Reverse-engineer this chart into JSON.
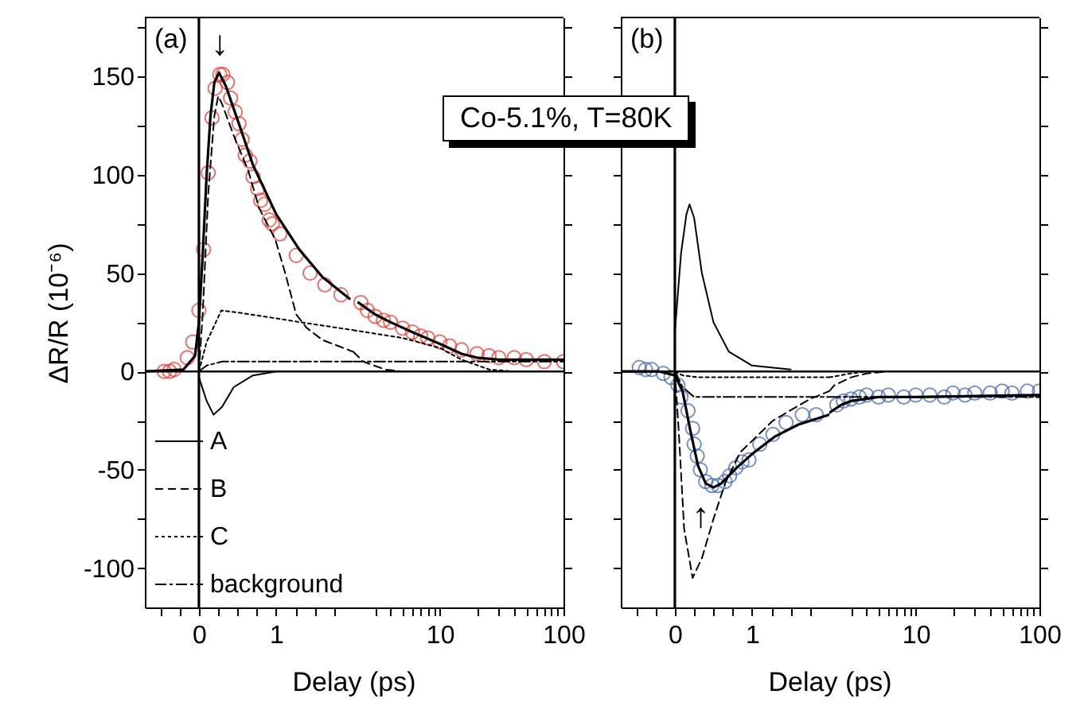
{
  "chart_data": [
    {
      "type": "line",
      "title": "(a)",
      "xlabel": "Delay (ps)",
      "ylabel": "ΔR/R (10⁻⁶)",
      "xlim": [
        -0.7,
        2
      ],
      "ylim": [
        -120,
        180
      ],
      "xticks": [
        {
          "value": -0.5,
          "label": null
        },
        {
          "value": -0.25,
          "label": null
        },
        0,
        {
          "value": 0.25,
          "label": null
        },
        {
          "value": 0.5,
          "label": null
        },
        {
          "value": 0.75,
          "label": null
        },
        1,
        {
          "value": 1.25,
          "label": null
        },
        {
          "value": 1.5,
          "label": null
        },
        {
          "value": 1.75,
          "label": null
        }
      ],
      "yticks": [
        -100,
        {
          "value": -75,
          "label": null
        },
        -50,
        {
          "value": -25,
          "label": null
        },
        0,
        {
          "value": 25,
          "label": null
        },
        50,
        {
          "value": 75,
          "label": null
        },
        100,
        {
          "value": 125,
          "label": null
        },
        150,
        {
          "value": 175,
          "label": null
        }
      ],
      "series": [
        {
          "type": "scatter",
          "marker": "circle",
          "color": "#e8342a",
          "x": [
            -0.45,
            -0.38,
            -0.32,
            -0.15,
            -0.08,
            0,
            0.06,
            0.12,
            0.17,
            0.21,
            0.27,
            0.31,
            0.37,
            0.41,
            0.47,
            0.52,
            0.56,
            0.6,
            0.66,
            0.7,
            0.76,
            0.8,
            0.85,
            0.91,
            0.95,
            1.05,
            1.26,
            1.44,
            1.63,
            1.84
          ],
          "values": [
            0,
            0,
            1,
            7,
            15,
            31,
            62,
            101,
            129,
            144,
            151,
            151,
            147,
            139,
            132,
            126,
            118,
            110,
            107,
            99,
            93,
            87,
            85,
            77,
            75,
            70,
            59,
            50,
            44,
            39
          ]
        },
        {
          "type": "line",
          "color": "#000000",
          "x": [
            -0.7,
            -0.2,
            -0.05,
            0,
            0.05,
            0.1,
            0.15,
            0.2,
            0.26,
            0.35,
            0.5,
            0.7,
            1,
            1.3,
            1.6,
            1.95
          ],
          "values": [
            0,
            1,
            8,
            25,
            60,
            100,
            130,
            147,
            152,
            145,
            128,
            105,
            80,
            62,
            48,
            37
          ]
        },
        {
          "type": "line",
          "name": "A",
          "line_style": "solid",
          "color": "#000000",
          "x": [
            0,
            0.1,
            0.19,
            0.3,
            0.45,
            0.7,
            1
          ],
          "values": [
            -3,
            -15,
            -22,
            -18,
            -8,
            -2,
            0
          ]
        },
        {
          "type": "line",
          "name": "B",
          "line_style": "dashed",
          "color": "#000000",
          "x": [
            0,
            0.05,
            0.12,
            0.2,
            0.25,
            0.3,
            0.45,
            0.64,
            0.78,
            0.99,
            1.11,
            1.26,
            1.4,
            1.6,
            1.8,
            2
          ],
          "values": [
            0,
            30,
            90,
            130,
            140,
            136,
            120,
            102,
            83,
            67,
            51,
            29,
            22,
            16,
            13,
            10
          ]
        },
        {
          "type": "line",
          "name": "C",
          "line_style": "dotted",
          "color": "#000000",
          "x": [
            0,
            0.1,
            0.29,
            0.5,
            1,
            1.32,
            2
          ],
          "values": [
            0,
            15,
            31,
            30,
            27,
            25,
            21
          ]
        },
        {
          "type": "line",
          "name": "background",
          "line_style": "dashdot",
          "color": "#000000",
          "x": [
            0,
            0.1,
            0.3,
            2
          ],
          "values": [
            0,
            3,
            5,
            5
          ]
        }
      ],
      "ref_lines": [
        {
          "axis": "y",
          "value": 0,
          "color": "#000000"
        },
        {
          "axis": "x",
          "value": 0,
          "color": "#000000"
        }
      ],
      "annotations": [
        {
          "text": "↓",
          "x": 0.27,
          "y": 152
        }
      ],
      "legend": "bottom right",
      "tick_labels": "xy"
    },
    {
      "type": "line",
      "log": "x",
      "xlim": [
        2,
        100
      ],
      "ylim": [
        -120,
        180
      ],
      "xticks": [
        {
          "value": 3,
          "label": null
        },
        {
          "value": 4,
          "label": null
        },
        {
          "value": 5,
          "label": null
        },
        {
          "value": 6,
          "label": null
        },
        {
          "value": 7,
          "label": null
        },
        {
          "value": 8,
          "label": null
        },
        {
          "value": 9,
          "label": null
        },
        10,
        {
          "value": 20,
          "label": null
        },
        {
          "value": 30,
          "label": null
        },
        {
          "value": 40,
          "label": null
        },
        {
          "value": 50,
          "label": null
        },
        {
          "value": 60,
          "label": null
        },
        {
          "value": 70,
          "label": null
        },
        {
          "value": 80,
          "label": null
        },
        {
          "value": 90,
          "label": null
        },
        100
      ],
      "yticks": [
        -100,
        {
          "value": -75,
          "label": null
        },
        -50,
        {
          "value": -25,
          "label": null
        },
        0,
        {
          "value": 25,
          "label": null
        },
        50,
        {
          "value": 75,
          "label": null
        },
        100,
        {
          "value": 125,
          "label": null
        },
        150,
        {
          "value": 175,
          "label": null
        }
      ],
      "series": [
        {
          "type": "scatter",
          "marker": "circle",
          "color": "#e8342a",
          "x": [
            2.3,
            2.6,
            3,
            3.5,
            4,
            5,
            6,
            7,
            8,
            10,
            12,
            15,
            20,
            25,
            30,
            40,
            50,
            70,
            100
          ],
          "values": [
            35,
            31,
            28,
            26,
            25,
            22,
            20,
            18,
            17,
            15,
            13,
            11,
            9,
            8,
            7,
            7,
            6,
            5,
            5
          ]
        },
        {
          "type": "line",
          "color": "#000000",
          "x": [
            2.2,
            3,
            4,
            6,
            10,
            15,
            20,
            30,
            100
          ],
          "values": [
            35,
            29,
            25,
            20,
            14,
            9,
            7,
            6,
            6
          ]
        },
        {
          "type": "line",
          "line_style": "dashed",
          "color": "#000000",
          "x": [
            2,
            2.4,
            3.6,
            5
          ],
          "values": [
            10,
            5,
            1,
            0
          ]
        },
        {
          "type": "line",
          "line_style": "dotted",
          "color": "#000000",
          "x": [
            2,
            5,
            10,
            15,
            25,
            40
          ],
          "values": [
            21,
            17,
            12,
            6,
            1,
            0
          ]
        },
        {
          "type": "line",
          "line_style": "dashdot",
          "color": "#000000",
          "x": [
            2,
            100
          ],
          "values": [
            5,
            5
          ]
        }
      ],
      "ref_lines": [
        {
          "axis": "y",
          "value": 0,
          "color": "#000000"
        }
      ],
      "annotations": [
        "Co-5.1%, T=80K"
      ],
      "tick_labels": "x"
    },
    {
      "type": "line",
      "title": "(b)",
      "xlabel": "Delay (ps)",
      "xlim": [
        -0.7,
        2
      ],
      "ylim": [
        -120,
        180
      ],
      "xticks": [
        {
          "value": -0.5,
          "label": null
        },
        {
          "value": -0.25,
          "label": null
        },
        0,
        {
          "value": 0.25,
          "label": null
        },
        {
          "value": 0.5,
          "label": null
        },
        {
          "value": 0.75,
          "label": null
        },
        1,
        {
          "value": 1.25,
          "label": null
        },
        {
          "value": 1.5,
          "label": null
        },
        {
          "value": 1.75,
          "label": null
        }
      ],
      "yticks": [
        -100,
        {
          "value": -75,
          "label": null
        },
        -50,
        {
          "value": -25,
          "label": null
        },
        0,
        {
          "value": 25,
          "label": null
        },
        50,
        {
          "value": 75,
          "label": null
        },
        100,
        {
          "value": 125,
          "label": null
        },
        150,
        {
          "value": 175,
          "label": null
        }
      ],
      "series": [
        {
          "type": "scatter",
          "marker": "circle",
          "color": "#3f63b4",
          "x": [
            -0.46,
            -0.38,
            -0.3,
            -0.15,
            -0.05,
            0.04,
            0.08,
            0.17,
            0.23,
            0.25,
            0.29,
            0.33,
            0.4,
            0.48,
            0.56,
            0.65,
            0.71,
            0.79,
            0.87,
            0.96,
            1.1,
            1.27,
            1.44,
            1.65,
            1.83
          ],
          "values": [
            2,
            1,
            1,
            -1,
            -3,
            -7,
            -13,
            -20,
            -29,
            -37,
            -43,
            -50,
            -56,
            -58,
            -58,
            -56,
            -53,
            -49,
            -46,
            -45,
            -37,
            -32,
            -26,
            -22,
            -22
          ]
        },
        {
          "type": "line",
          "color": "#000000",
          "x": [
            -0.7,
            -0.2,
            0,
            0.1,
            0.2,
            0.3,
            0.4,
            0.5,
            0.6,
            0.8,
            1,
            1.3,
            1.6,
            2
          ],
          "values": [
            0,
            0,
            -2,
            -10,
            -30,
            -48,
            -57,
            -59,
            -57,
            -49,
            -42,
            -33,
            -27,
            -22
          ]
        },
        {
          "type": "line",
          "line_style": "solid",
          "color": "#000000",
          "x": [
            0,
            0.08,
            0.15,
            0.19,
            0.25,
            0.35,
            0.5,
            0.7,
            1,
            1.5
          ],
          "values": [
            20,
            60,
            80,
            85,
            78,
            50,
            25,
            10,
            3,
            1
          ]
        },
        {
          "type": "line",
          "line_style": "dashed",
          "color": "#000000",
          "x": [
            0,
            0.05,
            0.12,
            0.23,
            0.35,
            0.5,
            0.65,
            0.85,
            1.27,
            1.75,
            2
          ],
          "values": [
            0,
            -30,
            -80,
            -105,
            -95,
            -75,
            -57,
            -41,
            -25,
            -14,
            -10
          ]
        },
        {
          "type": "line",
          "line_style": "dotted",
          "color": "#000000",
          "x": [
            0,
            0.1,
            0.3,
            2
          ],
          "values": [
            0,
            -2,
            -3,
            -3
          ]
        },
        {
          "type": "line",
          "line_style": "dashdot",
          "color": "#000000",
          "x": [
            0,
            0.1,
            0.25,
            2
          ],
          "values": [
            0,
            -8,
            -13,
            -13
          ]
        }
      ],
      "ref_lines": [
        {
          "axis": "y",
          "value": 0,
          "color": "#000000"
        },
        {
          "axis": "x",
          "value": 0,
          "color": "#000000"
        }
      ],
      "annotations": [
        {
          "text": "↑",
          "x": 0.5,
          "y": -59
        }
      ],
      "tick_labels": "x"
    },
    {
      "type": "line",
      "log": "x",
      "xlim": [
        2,
        100
      ],
      "ylim": [
        -120,
        180
      ],
      "xticks": [
        {
          "value": 3,
          "label": null
        },
        {
          "value": 4,
          "label": null
        },
        {
          "value": 5,
          "label": null
        },
        {
          "value": 6,
          "label": null
        },
        {
          "value": 7,
          "label": null
        },
        {
          "value": 8,
          "label": null
        },
        {
          "value": 9,
          "label": null
        },
        10,
        {
          "value": 20,
          "label": null
        },
        {
          "value": 30,
          "label": null
        },
        {
          "value": 40,
          "label": null
        },
        {
          "value": 50,
          "label": null
        },
        {
          "value": 60,
          "label": null
        },
        {
          "value": 70,
          "label": null
        },
        {
          "value": 80,
          "label": null
        },
        {
          "value": 90,
          "label": null
        },
        100
      ],
      "yticks": [
        -100,
        {
          "value": -75,
          "label": null
        },
        -50,
        {
          "value": -25,
          "label": null
        },
        0,
        {
          "value": 25,
          "label": null
        },
        50,
        {
          "value": 75,
          "label": null
        },
        100,
        {
          "value": 125,
          "label": null
        },
        150,
        {
          "value": 175,
          "label": null
        }
      ],
      "series": [
        {
          "type": "scatter",
          "marker": "circle",
          "color": "#3f63b4",
          "x": [
            2.3,
            2.6,
            3,
            3.5,
            4,
            5,
            6,
            8,
            10,
            13,
            17,
            20,
            25,
            30,
            40,
            50,
            60,
            80,
            100
          ],
          "values": [
            -17,
            -15,
            -14,
            -13,
            -12,
            -13,
            -12,
            -13,
            -12,
            -12,
            -13,
            -11,
            -12,
            -11,
            -11,
            -10,
            -11,
            -10,
            -10
          ]
        },
        {
          "type": "line",
          "color": "#000000",
          "x": [
            2,
            2.5,
            3,
            5,
            10,
            100
          ],
          "values": [
            -21,
            -17,
            -15,
            -13,
            -13,
            -12
          ]
        },
        {
          "type": "line",
          "line_style": "dashed",
          "color": "#000000",
          "x": [
            2,
            2.2,
            3,
            4,
            6
          ],
          "values": [
            -10,
            -7,
            -3,
            -1,
            0
          ]
        },
        {
          "type": "line",
          "line_style": "dotted",
          "color": "#000000",
          "x": [
            2,
            3,
            4
          ],
          "values": [
            -3,
            -1,
            0
          ]
        },
        {
          "type": "line",
          "line_style": "dashdot",
          "color": "#000000",
          "x": [
            2,
            100
          ],
          "values": [
            -13,
            -13
          ]
        }
      ],
      "ref_lines": [
        {
          "axis": "y",
          "value": 0,
          "color": "#000000"
        }
      ],
      "tick_labels": "x"
    }
  ]
}
